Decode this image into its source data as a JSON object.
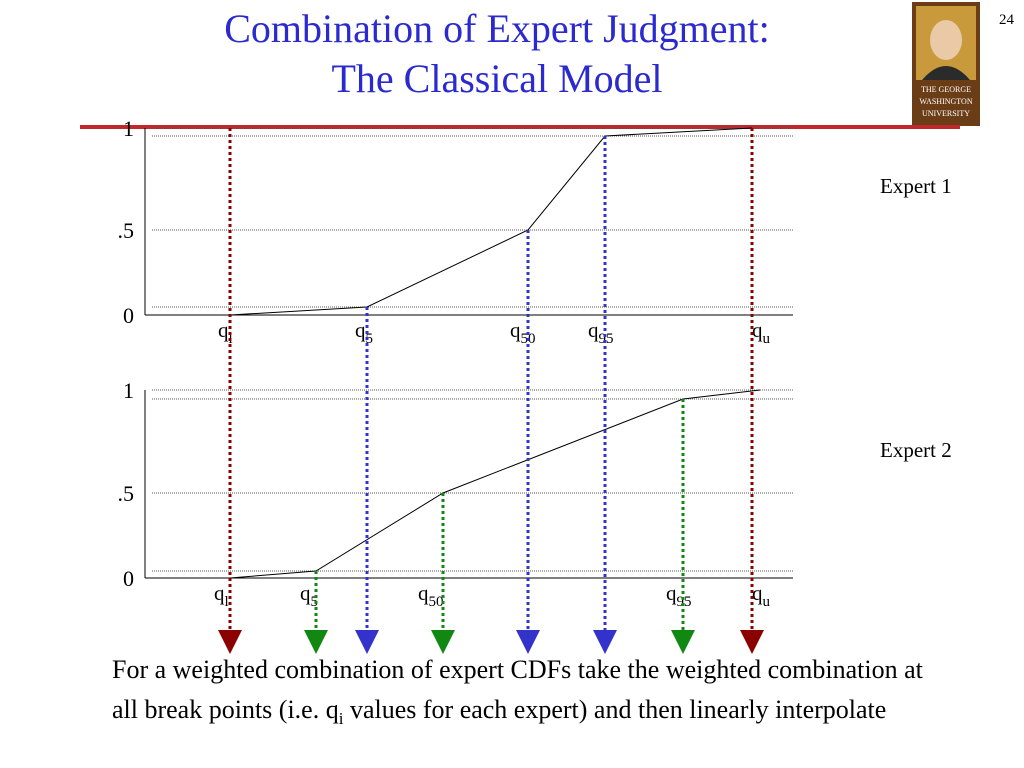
{
  "header": {
    "title": [
      "Combination of Expert Judgment:",
      "The Classical Model"
    ],
    "page_number": "24"
  },
  "logo": {
    "lines": [
      "THE GEORGE",
      "WASHINGTON",
      "UNIVERSITY"
    ]
  },
  "panels": [
    {
      "label": "Expert 1",
      "y_labels": [
        "1",
        ".5",
        "0"
      ],
      "quantiles": [
        {
          "base": "q",
          "sub": "l"
        },
        {
          "base": "q",
          "sub": "5"
        },
        {
          "base": "q",
          "sub": "50"
        },
        {
          "base": "q",
          "sub": "95"
        },
        {
          "base": "q",
          "sub": "u"
        }
      ]
    },
    {
      "label": "Expert 2",
      "y_labels": [
        "1",
        ".5",
        "0"
      ],
      "quantiles": [
        {
          "base": "q",
          "sub": "l"
        },
        {
          "base": "q",
          "sub": "5"
        },
        {
          "base": "q",
          "sub": "50"
        },
        {
          "base": "q",
          "sub": "95"
        },
        {
          "base": "q",
          "sub": "u"
        }
      ]
    }
  ],
  "caption": {
    "before": "For a weighted combination of expert CDFs take the weighted combination at all break points (i.e. q",
    "sub": "i",
    "after": " values for each expert) and then linearly interpolate"
  }
}
